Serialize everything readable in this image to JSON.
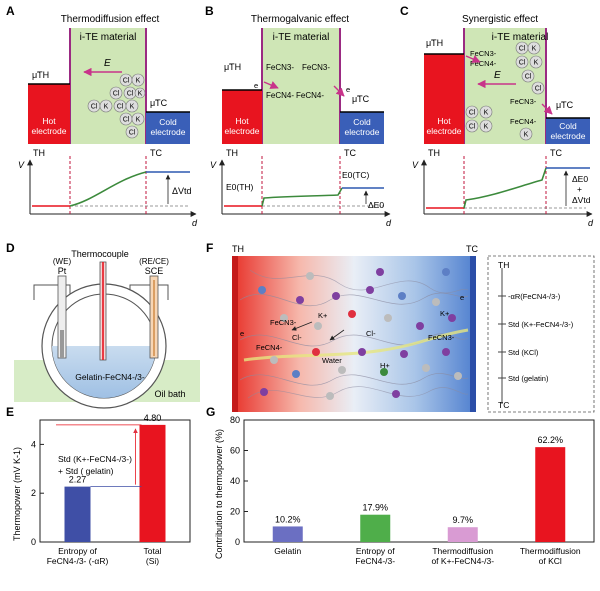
{
  "panels": {
    "A": {
      "letter": "A",
      "title": "Thermodiffusion effect",
      "material": "i-TE material",
      "mu_hot": "μ̃TH",
      "mu_cold": "μ̃TC",
      "field": "E",
      "hot_label": [
        "Hot",
        "electrode"
      ],
      "cold_label": [
        "Cold",
        "electrode"
      ],
      "th": "TH",
      "tc": "TC",
      "v_axis": "V",
      "d_axis": "d",
      "delta": "ΔVtd"
    },
    "B": {
      "letter": "B",
      "title": "Thermogalvanic effect",
      "material": "i-TE material",
      "mu_hot": "μ̃TH",
      "mu_cold": "μ̃TC",
      "species": [
        "FeCN3-",
        "FeCN4-",
        "FeCN3-",
        "FeCN4-"
      ],
      "electron": "e",
      "hot_label": [
        "Hot",
        "electrode"
      ],
      "cold_label": [
        "Cold",
        "electrode"
      ],
      "th": "TH",
      "tc": "TC",
      "v_axis": "V",
      "d_axis": "d",
      "e0_th": "E0(TH)",
      "e0_tc": "E0(TC)",
      "delta": "ΔE0"
    },
    "C": {
      "letter": "C",
      "title": "Synergistic effect",
      "material": "i-TE material",
      "mu_hot": "μ̃TH",
      "mu_cold": "μ̃TC",
      "field": "E",
      "hot_label": [
        "Hot",
        "electrode"
      ],
      "cold_label": [
        "Cold",
        "electrode"
      ],
      "th": "TH",
      "tc": "TC",
      "v_axis": "V",
      "d_axis": "d",
      "delta_lines": [
        "ΔE0",
        "+",
        "ΔVtd"
      ]
    },
    "D": {
      "letter": "D",
      "thermocouple": "Thermocouple",
      "we": "(WE)",
      "pt": "Pt",
      "rece": "(RE/CE)",
      "sce": "SCE",
      "gel": "Gelatin-FeCN4-/3-",
      "bath": "Oil bath"
    },
    "F": {
      "letter": "F",
      "th": "TH",
      "tc": "TC",
      "labels": [
        "FeCN3-",
        "Cl-",
        "K+",
        "FeCN4-",
        "Water",
        "Cl-",
        "H+",
        "FeCN3-",
        "K+",
        "e",
        "e"
      ],
      "legend": [
        "TH",
        "-αR(FeCN4-/3-)",
        "Std (K+-FeCN4-/3-)",
        "Std (KCl)",
        "Std (gelatin)",
        "TC"
      ]
    },
    "E": {
      "letter": "E",
      "ylabel": "Thermopower (mV K-1)",
      "annotation": [
        "Std (K+-FeCN4-/3-)",
        "+ Std ( gelatin)"
      ]
    },
    "G": {
      "letter": "G",
      "ylabel": "Contribution to thermopower (%)"
    }
  },
  "chart_data": [
    {
      "type": "bar",
      "panel": "E",
      "categories": [
        "Entropy of FeCN4-/3- (-αR)",
        "Total (Si)"
      ],
      "category_lines": [
        [
          "Entropy of",
          "FeCN4-/3- (-αR)"
        ],
        [
          "Total",
          "(Si)"
        ]
      ],
      "values": [
        2.27,
        4.8
      ],
      "value_labels": [
        "2.27",
        "4.80"
      ],
      "colors": [
        "#3f4fa6",
        "#e8141f"
      ],
      "ylim": [
        0,
        5
      ],
      "yticks": [
        0,
        2,
        4
      ],
      "ylabel": "Thermopower (mV K-1)"
    },
    {
      "type": "bar",
      "panel": "G",
      "categories": [
        "Gelatin",
        "Entropy of FeCN4-/3-",
        "Thermodiffusion of K+-FeCN4-/3-",
        "Thermodiffusion of KCl"
      ],
      "category_lines": [
        [
          "Gelatin"
        ],
        [
          "Entropy of",
          "FeCN4-/3-"
        ],
        [
          "Thermodiffusion",
          "of K+-FeCN4-/3-"
        ],
        [
          "Thermodiffusion",
          "of KCl"
        ]
      ],
      "values": [
        10.2,
        17.9,
        9.7,
        62.2
      ],
      "value_labels": [
        "10.2%",
        "17.9%",
        "9.7%",
        "62.2%"
      ],
      "colors": [
        "#6b6fc2",
        "#4fae4a",
        "#d99bd3",
        "#e8141f"
      ],
      "ylim": [
        0,
        80
      ],
      "yticks": [
        0,
        20,
        40,
        60,
        80
      ],
      "ylabel": "Contribution to thermopower (%)"
    }
  ]
}
